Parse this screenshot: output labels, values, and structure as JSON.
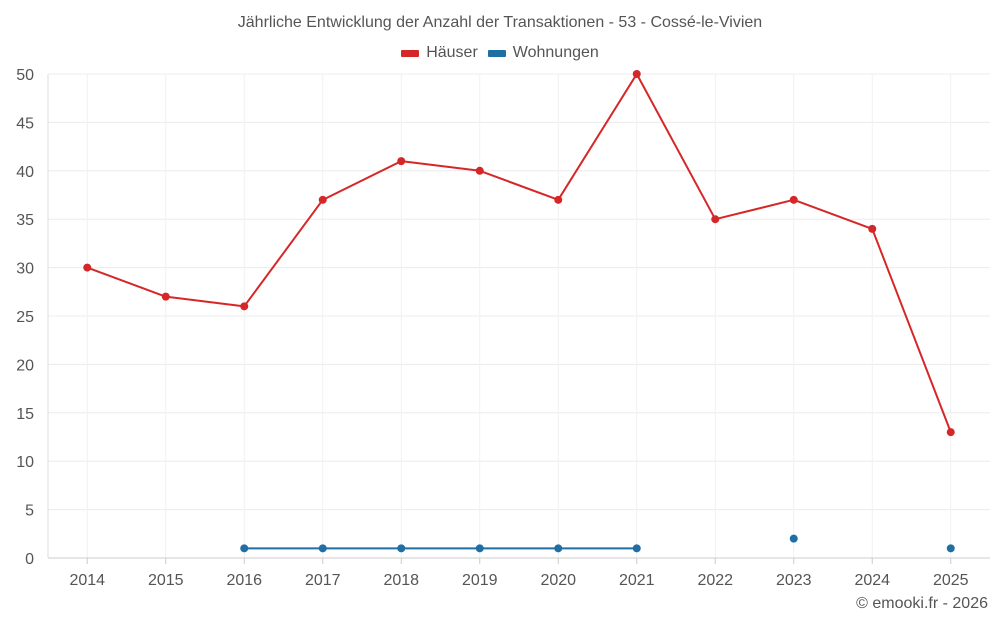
{
  "chart_data": {
    "type": "line",
    "title": "Jährliche Entwicklung der Anzahl der Transaktionen - 53 - Cossé-le-Vivien",
    "xlabel": "",
    "ylabel": "",
    "categories": [
      "2014",
      "2015",
      "2016",
      "2017",
      "2018",
      "2019",
      "2020",
      "2021",
      "2022",
      "2023",
      "2024",
      "2025"
    ],
    "ylim": [
      0,
      50
    ],
    "yticks": [
      0,
      5,
      10,
      15,
      20,
      25,
      30,
      35,
      40,
      45,
      50
    ],
    "grid": true,
    "legend_position": "top-center",
    "series": [
      {
        "name": "Häuser",
        "color": "#d62728",
        "values": [
          30,
          27,
          26,
          37,
          41,
          40,
          37,
          50,
          35,
          37,
          34,
          13
        ]
      },
      {
        "name": "Wohnungen",
        "color": "#1f6fa5",
        "values": [
          null,
          null,
          1,
          1,
          1,
          1,
          1,
          1,
          null,
          2,
          null,
          1
        ]
      }
    ]
  },
  "footer": {
    "credit": "© emooki.fr - 2026"
  }
}
